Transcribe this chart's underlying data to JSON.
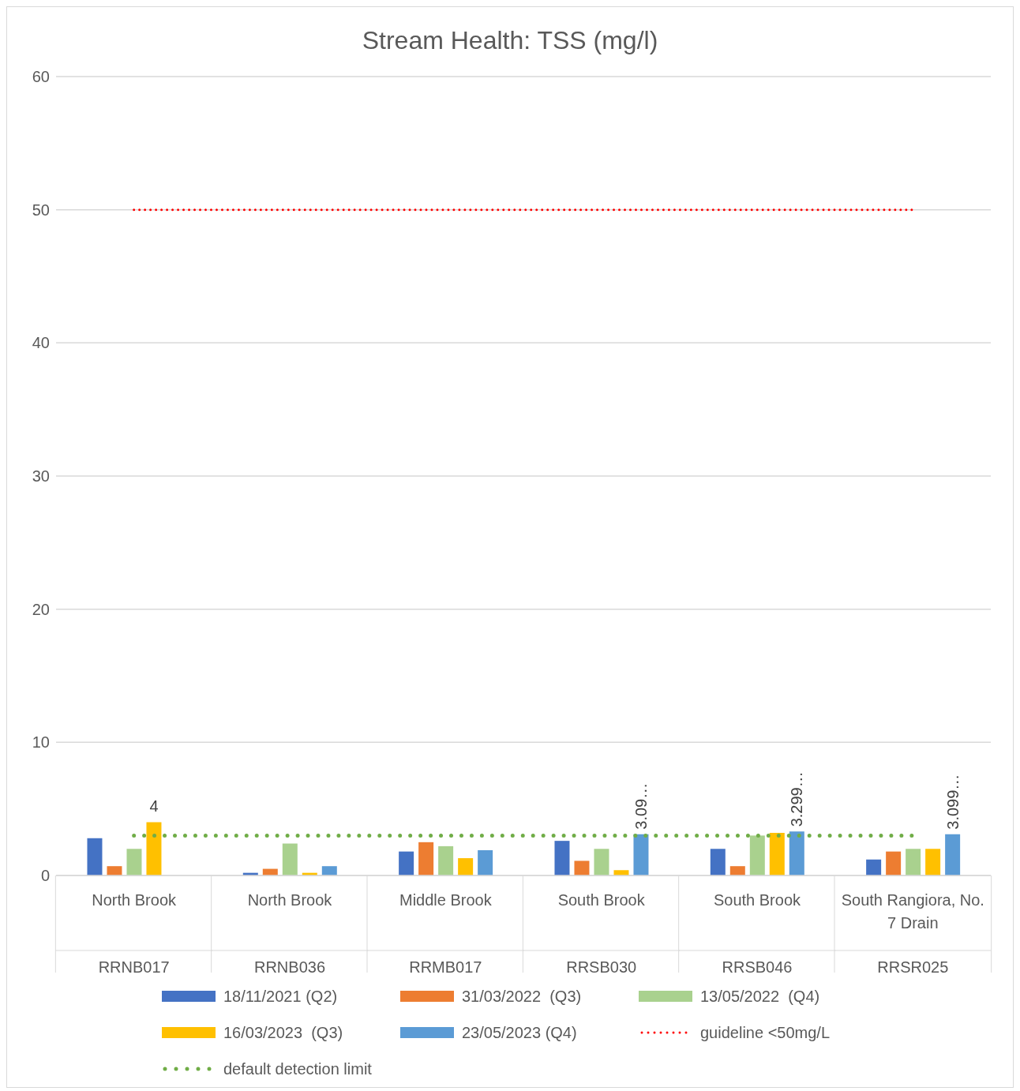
{
  "chart_data": {
    "type": "bar",
    "title": "Stream Health: TSS (mg/l)",
    "categories": [
      "North Brook\nRRNB017",
      "North Brook\nRRNB036",
      "Middle Brook\nRRMB017",
      "South Brook\nRRSB030",
      "South Brook\nRRSB046",
      "South Rangiora, No. 7 Drain\nRRSR025"
    ],
    "series": [
      {
        "name": "18/11/2021 (Q2)",
        "color": "#4472c4",
        "values": [
          2.8,
          0.2,
          1.8,
          2.6,
          2.0,
          1.2
        ]
      },
      {
        "name": "31/03/2022  (Q3)",
        "color": "#ed7d31",
        "values": [
          0.7,
          0.5,
          2.5,
          1.1,
          0.7,
          1.8
        ]
      },
      {
        "name": "13/05/2022  (Q4)",
        "color": "#a9d18e",
        "values": [
          2.0,
          2.4,
          2.2,
          2.0,
          3.0,
          2.0
        ]
      },
      {
        "name": "16/03/2023  (Q3)",
        "color": "#ffc000",
        "values": [
          4,
          0.2,
          1.3,
          0.4,
          3.2,
          2.0
        ],
        "value_labels": [
          "4",
          null,
          null,
          null,
          null,
          null
        ]
      },
      {
        "name": "23/05/2023 (Q4)",
        "color": "#5b9bd5",
        "values": [
          null,
          0.7,
          1.9,
          3.1,
          3.3,
          3.1
        ],
        "value_labels": [
          null,
          null,
          null,
          "3.09…",
          "3.299…",
          "3.099…"
        ]
      },
      {
        "name": "guideline <50mg/L",
        "type": "line",
        "color": "#ff0000",
        "line_style": "dotted",
        "values": [
          50,
          50,
          50,
          50,
          50,
          50
        ]
      },
      {
        "name": "default detection limit",
        "type": "line",
        "color": "#70ad47",
        "line_style": "dotted",
        "values": [
          3,
          3,
          3,
          3,
          3,
          3
        ]
      }
    ],
    "ylim": [
      0,
      60
    ],
    "yticks": [
      0,
      10,
      20,
      30,
      40,
      50,
      60
    ],
    "grid": "y",
    "legend": "bottom",
    "marker": "none"
  }
}
